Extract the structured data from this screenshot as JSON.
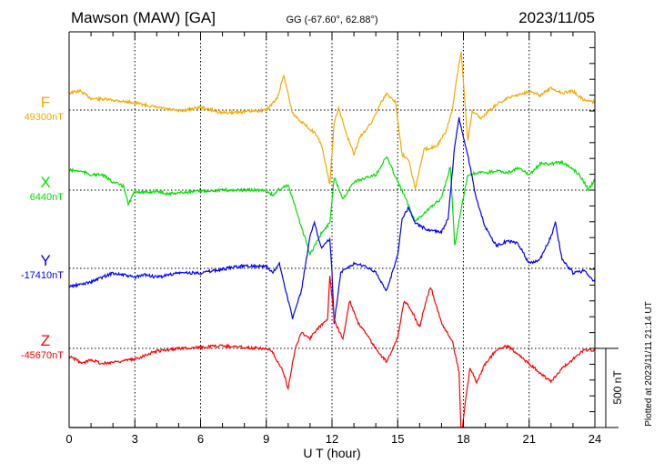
{
  "header": {
    "station": "Mawson (MAW)  [GA]",
    "coords": "GG (-67.60°,  62.88°)",
    "date": "2023/11/05"
  },
  "plotted_note": "Plotted at 2023/11/11 21:14 UT",
  "chart_data": {
    "type": "line",
    "title": "Mawson (MAW)  [GA]",
    "xlabel": "U T (hour)",
    "xlim": [
      0,
      24
    ],
    "xticks": [
      "0",
      "3",
      "6",
      "9",
      "12",
      "15",
      "18",
      "21",
      "24"
    ],
    "scale_bar_label": "500 nT",
    "scale_bar_nT": 500,
    "grid": true,
    "series": [
      {
        "name": "F",
        "baseline_label": "49300nT",
        "color": "#f5a800",
        "x": [
          0,
          0.5,
          1,
          2,
          3,
          4,
          5,
          6,
          7,
          8,
          9,
          9.5,
          9.8,
          10.2,
          10.8,
          11.2,
          11.5,
          11.9,
          12.1,
          12.3,
          12.7,
          13.0,
          13.3,
          13.8,
          14.2,
          14.5,
          14.9,
          15.2,
          15.5,
          15.8,
          16.2,
          16.8,
          17.2,
          17.5,
          17.7,
          17.9,
          18.0,
          18.2,
          18.4,
          18.8,
          19.5,
          20,
          21,
          21.5,
          22,
          22.5,
          23,
          23.5,
          24
        ],
        "y": [
          109,
          120,
          74,
          63,
          46,
          17,
          -6,
          17,
          -17,
          -11,
          0,
          74,
          223,
          -23,
          -97,
          -143,
          -212,
          -470,
          -80,
          11,
          -166,
          -281,
          -166,
          -80,
          40,
          103,
          52,
          -281,
          -309,
          -498,
          -252,
          -223,
          -138,
          6,
          206,
          367,
          178,
          -195,
          -6,
          -52,
          34,
          74,
          120,
          92,
          138,
          109,
          120,
          63,
          52
        ]
      },
      {
        "name": "X",
        "baseline_label": "6440nT",
        "color": "#00e000",
        "x": [
          0,
          0.5,
          1,
          1.5,
          2,
          2.5,
          2.7,
          3,
          3.5,
          4,
          4.5,
          5,
          6,
          7,
          8,
          9,
          9.3,
          9.6,
          10.0,
          10.5,
          11.0,
          11.5,
          11.9,
          12.1,
          12.5,
          13,
          14,
          14.5,
          15,
          15.3,
          15.8,
          16.5,
          17,
          17.4,
          17.6,
          17.9,
          18.2,
          18.6,
          19,
          19.5,
          20,
          20.5,
          21,
          21.5,
          22,
          22.5,
          23,
          23.3,
          23.7,
          24
        ],
        "y": [
          126,
          120,
          97,
          97,
          52,
          23,
          -92,
          -6,
          -17,
          -6,
          -23,
          -17,
          -6,
          0,
          0,
          0,
          -34,
          6,
          34,
          -189,
          -407,
          -275,
          -206,
          80,
          -52,
          52,
          97,
          212,
          52,
          -34,
          -195,
          -109,
          -52,
          149,
          -350,
          -120,
          92,
          109,
          109,
          120,
          109,
          138,
          97,
          166,
          166,
          178,
          132,
          97,
          6,
          63
        ]
      },
      {
        "name": "Y",
        "baseline_label": "-17410nT",
        "color": "#0000ff",
        "x": [
          0,
          0.5,
          1,
          1.5,
          2,
          3,
          3.5,
          4,
          5,
          6,
          7,
          8,
          9,
          9.3,
          9.6,
          9.8,
          10.2,
          10.6,
          11.0,
          11.2,
          11.5,
          11.9,
          12.0,
          12.1,
          12.4,
          13.0,
          13.5,
          14.0,
          14.5,
          15,
          15.2,
          15.5,
          15.8,
          16.3,
          17.0,
          17.3,
          17.6,
          17.8,
          18.2,
          18.6,
          19,
          19.5,
          20,
          20.5,
          21,
          21.5,
          22,
          22.2,
          22.5,
          23,
          23.5,
          24
        ],
        "y": [
          -115,
          -103,
          -86,
          -57,
          -29,
          -57,
          -40,
          -57,
          -29,
          -29,
          -6,
          17,
          11,
          -29,
          29,
          -86,
          -315,
          -143,
          201,
          287,
          132,
          189,
          -29,
          -344,
          -29,
          29,
          17,
          -29,
          -143,
          86,
          315,
          384,
          287,
          246,
          229,
          315,
          774,
          946,
          716,
          430,
          258,
          143,
          172,
          155,
          29,
          57,
          201,
          287,
          57,
          -29,
          -17,
          -86
        ]
      },
      {
        "name": "Z",
        "baseline_label": "-45670nT",
        "color": "#ff0000",
        "x": [
          0,
          0.3,
          0.6,
          1,
          1.5,
          2,
          3,
          3.5,
          4,
          5,
          6,
          7,
          8,
          9,
          9.3,
          9.8,
          10.0,
          10.3,
          10.6,
          11.0,
          11.4,
          11.8,
          11.9,
          12.1,
          12.5,
          12.8,
          13.2,
          13.5,
          14.2,
          14.5,
          15,
          15.3,
          15.6,
          16.0,
          16.3,
          16.5,
          17.0,
          17.5,
          17.8,
          17.9,
          18.1,
          18.3,
          18.6,
          19,
          19.5,
          20,
          20.5,
          21,
          21.5,
          22,
          22.5,
          23,
          23.5,
          24
        ],
        "y": [
          -52,
          -69,
          -97,
          -69,
          -97,
          -86,
          -69,
          -40,
          -17,
          0,
          6,
          17,
          6,
          0,
          -29,
          -155,
          -258,
          -11,
          103,
          63,
          132,
          189,
          464,
          178,
          57,
          304,
          160,
          103,
          -40,
          -86,
          74,
          304,
          246,
          132,
          304,
          390,
          160,
          46,
          -155,
          -560,
          -327,
          -126,
          -212,
          -97,
          -11,
          17,
          -40,
          -97,
          -155,
          -212,
          -126,
          -69,
          -11,
          -11
        ]
      }
    ]
  }
}
